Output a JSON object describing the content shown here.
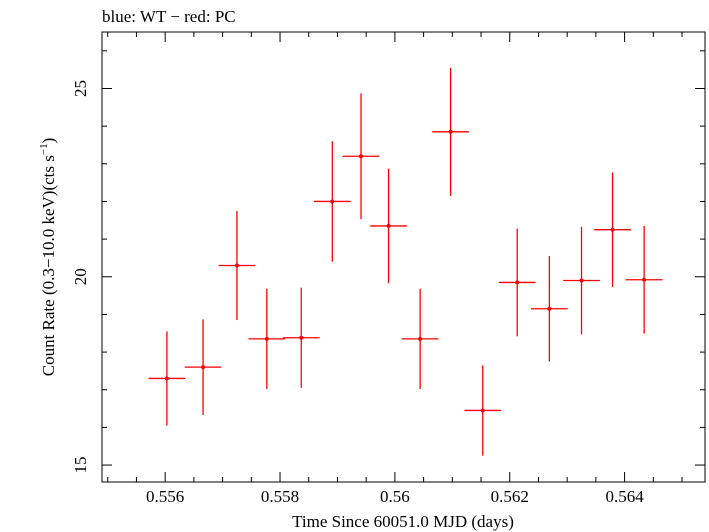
{
  "chart_data": {
    "type": "scatter",
    "title": "blue: WT − red: PC",
    "xlabel": "Time Since 60051.0 MJD (days)",
    "ylabel_main": "Count Rate (0.3−10.0 keV)(cts s",
    "ylabel_sup": "−1",
    "ylabel_close": ")",
    "xlim": [
      0.5549,
      0.5654
    ],
    "ylim": [
      14.55,
      26.5
    ],
    "x_ticks": [
      {
        "value": 0.556,
        "label": "0.556"
      },
      {
        "value": 0.558,
        "label": "0.558"
      },
      {
        "value": 0.56,
        "label": "0.56"
      },
      {
        "value": 0.562,
        "label": "0.562"
      },
      {
        "value": 0.564,
        "label": "0.564"
      }
    ],
    "y_ticks": [
      {
        "value": 15,
        "label": "15"
      },
      {
        "value": 20,
        "label": "20"
      },
      {
        "value": 25,
        "label": "25"
      }
    ],
    "grid": false,
    "series": [
      {
        "color": "#ff0000",
        "points": [
          {
            "x": 0.55603,
            "xerr": 0.00032,
            "y": 17.3,
            "yerr": 1.25
          },
          {
            "x": 0.55666,
            "xerr": 0.00032,
            "y": 17.6,
            "yerr": 1.27
          },
          {
            "x": 0.55725,
            "xerr": 0.00032,
            "y": 20.3,
            "yerr": 1.45
          },
          {
            "x": 0.55777,
            "xerr": 0.00032,
            "y": 18.35,
            "yerr": 1.33
          },
          {
            "x": 0.55837,
            "xerr": 0.00032,
            "y": 18.38,
            "yerr": 1.33
          },
          {
            "x": 0.55891,
            "xerr": 0.00032,
            "y": 22.0,
            "yerr": 1.6
          },
          {
            "x": 0.55941,
            "xerr": 0.00032,
            "y": 23.2,
            "yerr": 1.67
          },
          {
            "x": 0.55989,
            "xerr": 0.00032,
            "y": 21.35,
            "yerr": 1.52
          },
          {
            "x": 0.56044,
            "xerr": 0.00032,
            "y": 18.35,
            "yerr": 1.33
          },
          {
            "x": 0.56097,
            "xerr": 0.00032,
            "y": 23.85,
            "yerr": 1.7
          },
          {
            "x": 0.56153,
            "xerr": 0.00032,
            "y": 16.45,
            "yerr": 1.2
          },
          {
            "x": 0.56213,
            "xerr": 0.00032,
            "y": 19.85,
            "yerr": 1.43
          },
          {
            "x": 0.56269,
            "xerr": 0.00032,
            "y": 19.15,
            "yerr": 1.4
          },
          {
            "x": 0.56325,
            "xerr": 0.00032,
            "y": 19.9,
            "yerr": 1.43
          },
          {
            "x": 0.56379,
            "xerr": 0.00032,
            "y": 21.25,
            "yerr": 1.52
          },
          {
            "x": 0.56434,
            "xerr": 0.00032,
            "y": 19.92,
            "yerr": 1.43
          }
        ]
      }
    ]
  }
}
